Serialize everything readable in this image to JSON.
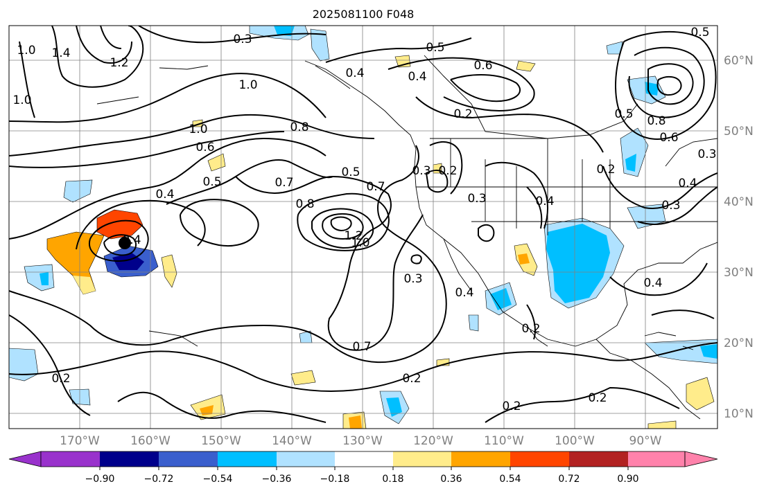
{
  "title": "2025081100 F048",
  "map": {
    "lon_labels": [
      "170°W",
      "160°W",
      "150°W",
      "140°W",
      "130°W",
      "120°W",
      "110°W",
      "100°W",
      "90°W"
    ],
    "lat_labels": [
      "60°N",
      "50°N",
      "40°N",
      "30°N",
      "20°N",
      "10°N"
    ],
    "contour_labels": [
      "0.3",
      "0.5",
      "0.4",
      "0.6",
      "0.2",
      "1.0",
      "1.4",
      "1.0",
      "1.2",
      "1.0",
      "0.4",
      "0.8",
      "1.0",
      "0.6",
      "0.4",
      "0.5",
      "0.7",
      "0.8",
      "0.5",
      "0.7",
      "1.2",
      "1.0",
      "0.3",
      "0.2",
      "0.3",
      "0.3",
      "0.4",
      "0.4",
      "0.2",
      "0.4",
      "0.7",
      "0.2",
      "0.2",
      "0.2",
      "0.2",
      "0.4",
      "0.8",
      "0.6",
      "0.5",
      "0.3",
      "0.4",
      "0.3",
      "0.2",
      "0.5"
    ],
    "storm_marker": "black-dot"
  },
  "colorbar": {
    "tick_labels": [
      "−0.90",
      "−0.72",
      "−0.54",
      "−0.36",
      "−0.18",
      "0.18",
      "0.36",
      "0.54",
      "0.72",
      "0.90"
    ],
    "colors": [
      "#9932cc",
      "#00008b",
      "#3a5fcd",
      "#00bfff",
      "#b0e2ff",
      "#ffffff",
      "#ffec8b",
      "#ffa500",
      "#ff4500",
      "#b22222",
      "#ff82ab"
    ]
  }
}
